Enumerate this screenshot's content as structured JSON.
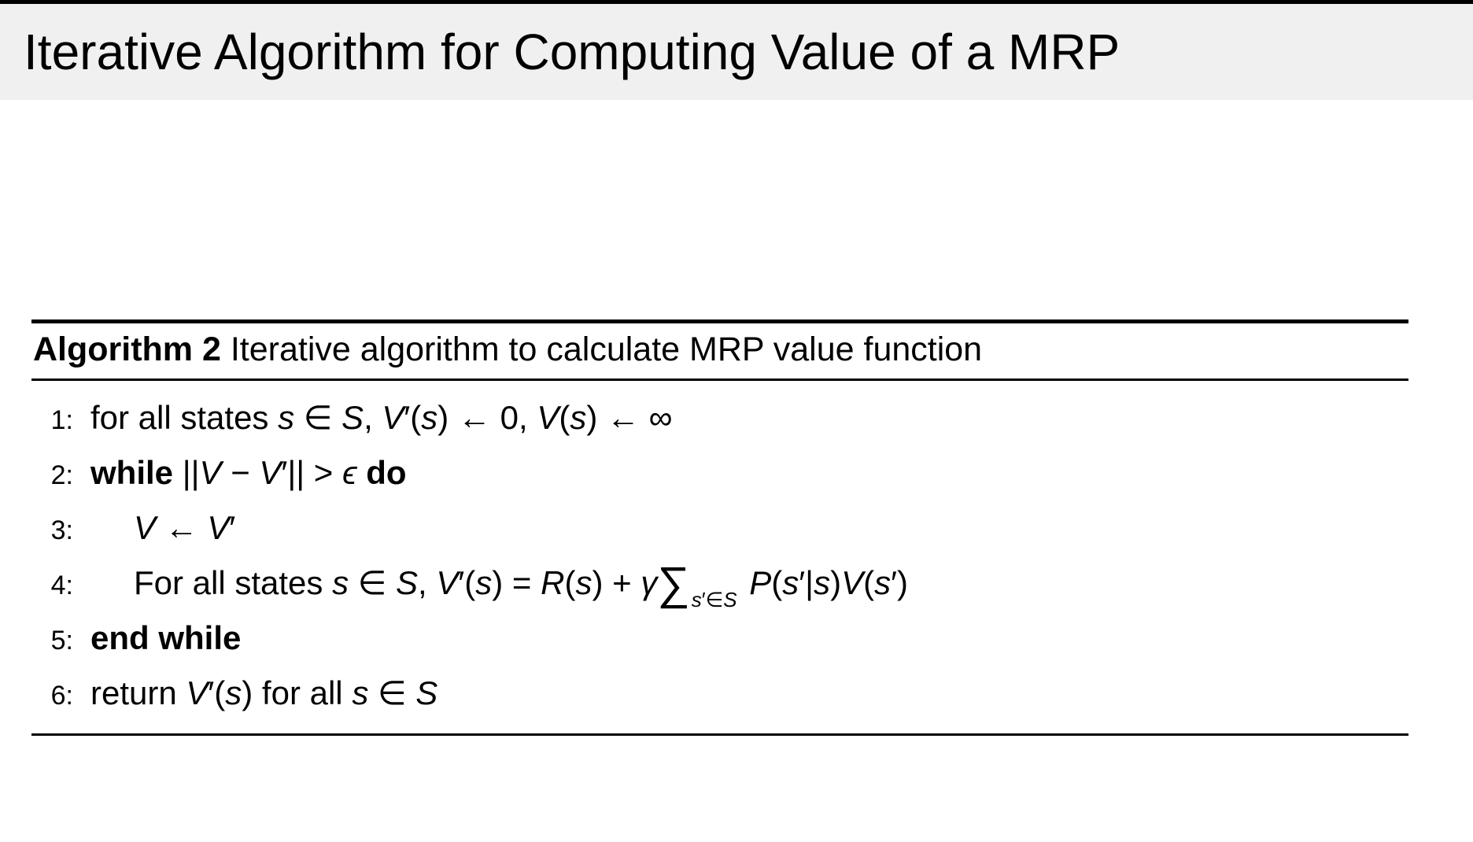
{
  "colors": {
    "title_band": "#f0f0f0",
    "top_strip": "#000000",
    "text": "#000000",
    "rule": "#000000"
  },
  "slide": {
    "title": "Iterative Algorithm for Computing Value of a MRP"
  },
  "algorithm": {
    "label": "Algorithm 2",
    "caption": "Iterative algorithm to calculate MRP value function",
    "lines": [
      {
        "num": "1:",
        "segs": [
          {
            "t": "for all states "
          },
          {
            "t": "s"
          },
          {
            "t": " ∈ "
          },
          {
            "t": "S"
          },
          {
            "t": ", "
          },
          {
            "t": "V"
          },
          {
            "t": "′("
          },
          {
            "t": "s"
          },
          {
            "t": ") ← 0, "
          },
          {
            "t": "V"
          },
          {
            "t": "("
          },
          {
            "t": "s"
          },
          {
            "t": ") ← ∞"
          }
        ]
      },
      {
        "num": "2:",
        "segs": [
          {
            "t": "while "
          },
          {
            "t": "||"
          },
          {
            "t": "V"
          },
          {
            "t": " − "
          },
          {
            "t": "V"
          },
          {
            "t": "′|| > "
          },
          {
            "t": "ϵ"
          },
          {
            "t": " do"
          }
        ]
      },
      {
        "num": "3:",
        "segs": [
          {
            "t": "V"
          },
          {
            "t": " ← "
          },
          {
            "t": "V"
          },
          {
            "t": "′"
          }
        ]
      },
      {
        "num": "4:",
        "segs": [
          {
            "t": "For all states "
          },
          {
            "t": "s"
          },
          {
            "t": " ∈ "
          },
          {
            "t": "S"
          },
          {
            "t": ", "
          },
          {
            "t": "V"
          },
          {
            "t": "′("
          },
          {
            "t": "s"
          },
          {
            "t": ") = "
          },
          {
            "t": "R"
          },
          {
            "t": "("
          },
          {
            "t": "s"
          },
          {
            "t": ") + "
          },
          {
            "t": "γ"
          },
          {
            "t": "∑"
          },
          {
            "t": "s"
          },
          {
            "t": "′∈"
          },
          {
            "t": "S"
          },
          {
            "t": " "
          },
          {
            "t": "P"
          },
          {
            "t": "("
          },
          {
            "t": "s"
          },
          {
            "t": "′|"
          },
          {
            "t": "s"
          },
          {
            "t": ")"
          },
          {
            "t": "V"
          },
          {
            "t": "("
          },
          {
            "t": "s"
          },
          {
            "t": "′)"
          }
        ]
      },
      {
        "num": "5:",
        "segs": [
          {
            "t": "end while"
          }
        ]
      },
      {
        "num": "6:",
        "segs": [
          {
            "t": "return "
          },
          {
            "t": "V"
          },
          {
            "t": "′("
          },
          {
            "t": "s"
          },
          {
            "t": ") for all "
          },
          {
            "t": "s"
          },
          {
            "t": " ∈ "
          },
          {
            "t": "S"
          }
        ]
      }
    ]
  }
}
